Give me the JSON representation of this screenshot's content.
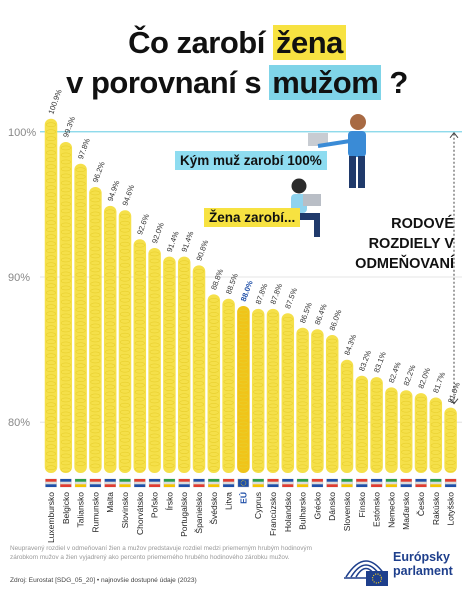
{
  "title": {
    "line1_a": "Čo zarobí ",
    "line1_b": "žena",
    "line2_a": "v porovnaní s ",
    "line2_b": "mužom",
    "line2_c": " ?"
  },
  "callouts": {
    "man": "Kým muž zarobí 100%",
    "woman": "Žena zarobí..."
  },
  "gap_label": [
    "RODOVÉ",
    "ROZDIELY V",
    "ODMEŇOVANÍ"
  ],
  "footnote": "Neupravený rozdiel v odmeňovaní žien a mužov predstavuje rozdiel medzi priemerným hrubým hodinovým zárobkom mužov a žien vyjadrený ako percento priemerného hrubého hodinového zárobku mužov.",
  "source": "Zdroj: Eurostat [SDG_05_20]  •  najnovšie dostupné údaje (2023)",
  "logo": {
    "line1": "Európsky",
    "line2": "parlament"
  },
  "colors": {
    "bar": "#f5e04a",
    "bar_dot": "#e8cf2e",
    "eu_bar": "#f0c419",
    "eu_label": "#1f4fa8",
    "gridline": "#7fd4e8",
    "grid": "#dcdcdc"
  },
  "chart_data": {
    "type": "bar",
    "ylabel_ticks": [
      "80%",
      "90%",
      "100%"
    ],
    "ylim": [
      76.5,
      101.5
    ],
    "grid": true,
    "reference_line": 100,
    "categories": [
      "Luxembursko",
      "Belgicko",
      "Taliansko",
      "Rumunsko",
      "Malta",
      "Slovinsko",
      "Chorvátsko",
      "Poľsko",
      "Írsko",
      "Portugalsko",
      "Španielsko",
      "Švédsko",
      "Litva",
      "EÚ",
      "Cyprus",
      "Francúzsko",
      "Holandsko",
      "Bulharsko",
      "Grécko",
      "Dánsko",
      "Slovensko",
      "Fínsko",
      "Estónsko",
      "Nemecko",
      "Maďarsko",
      "Česko",
      "Rakúsko",
      "Lotyšsko"
    ],
    "values": [
      100.9,
      99.3,
      97.8,
      96.2,
      94.9,
      94.6,
      92.6,
      92.0,
      91.4,
      91.4,
      90.8,
      88.8,
      88.5,
      88.0,
      87.8,
      87.8,
      87.5,
      86.5,
      86.4,
      86.0,
      84.3,
      83.2,
      83.1,
      82.4,
      82.2,
      82.0,
      81.7,
      81.0
    ],
    "value_labels": [
      "100.9%",
      "99.3%",
      "97.8%",
      "96.2%",
      "94.9%",
      "94.6%",
      "92.6%",
      "92.0%",
      "91.4%",
      "91.4%",
      "90.8%",
      "88.8%",
      "88.5%",
      "88.0%",
      "87.8%",
      "87.8%",
      "87.5%",
      "86.5%",
      "86.4%",
      "86.0%",
      "84.3%",
      "83.2%",
      "83.1%",
      "82.4%",
      "82.2%",
      "82.0%",
      "81.7%",
      "81.0%"
    ],
    "highlight": "EÚ"
  }
}
